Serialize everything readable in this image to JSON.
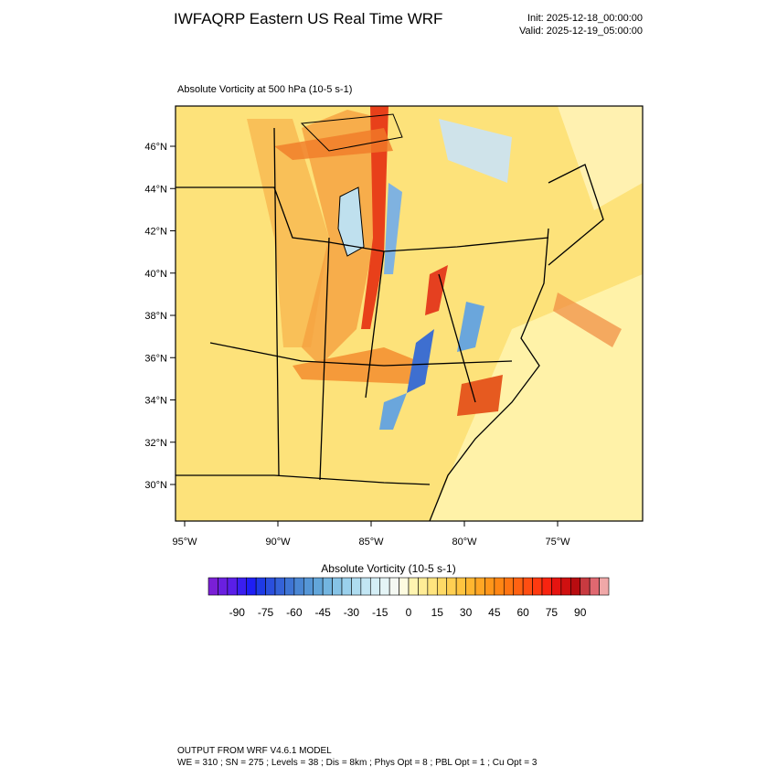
{
  "header": {
    "title": "IWFAQRP Eastern US Real Time WRF",
    "init": "Init: 2025-12-18_00:00:00",
    "valid": "Valid: 2025-12-19_05:00:00"
  },
  "map": {
    "title": "Absolute Vorticity at 500 hPa   (10-5 s-1)",
    "latticks": [
      {
        "value": 46,
        "label": "46°N"
      },
      {
        "value": 44,
        "label": "44°N"
      },
      {
        "value": 42,
        "label": "42°N"
      },
      {
        "value": 40,
        "label": "40°N"
      },
      {
        "value": 38,
        "label": "38°N"
      },
      {
        "value": 36,
        "label": "36°N"
      },
      {
        "value": 34,
        "label": "34°N"
      },
      {
        "value": 32,
        "label": "32°N"
      },
      {
        "value": 30,
        "label": "30°N"
      }
    ],
    "lonticks": [
      {
        "value": -95,
        "label": "95°W"
      },
      {
        "value": -90,
        "label": "90°W"
      },
      {
        "value": -85,
        "label": "85°W"
      },
      {
        "value": -80,
        "label": "80°W"
      },
      {
        "value": -75,
        "label": "75°W"
      }
    ]
  },
  "colorbar": {
    "title": "Absolute Vorticity  (10-5 s-1)",
    "clim": [
      -105,
      105
    ],
    "ticks": [
      -90,
      -75,
      -60,
      -45,
      -30,
      -15,
      0,
      15,
      30,
      45,
      60,
      75,
      90
    ],
    "colors": [
      "#7a1fd6",
      "#6a1fe0",
      "#5a1ee8",
      "#3a1ef0",
      "#1e1ef5",
      "#1e3ae6",
      "#2a4fdd",
      "#3462d8",
      "#3e74d4",
      "#4a86d3",
      "#5596d6",
      "#62a6da",
      "#73b5e0",
      "#86c3e6",
      "#9ad0ec",
      "#aedcf0",
      "#c2e6f4",
      "#d4eef6",
      "#e4f4f6",
      "#f4f8f2",
      "#fdfbe0",
      "#fff4b0",
      "#ffec96",
      "#ffe47e",
      "#ffda66",
      "#ffcf52",
      "#ffc440",
      "#ffb630",
      "#ffa624",
      "#ff961a",
      "#ff8614",
      "#ff7412",
      "#ff6212",
      "#ff4e12",
      "#ff3a10",
      "#f82410",
      "#e61410",
      "#d01010",
      "#b80c10",
      "#c83a40",
      "#e06870",
      "#f0a8a8"
    ]
  },
  "footer": {
    "line1": "OUTPUT FROM WRF V4.6.1 MODEL",
    "line2": "WE = 310 ; SN = 275 ; Levels = 38 ; Dis = 8km ; Phys Opt = 8 ; PBL Opt = 1 ; Cu Opt = 3"
  }
}
